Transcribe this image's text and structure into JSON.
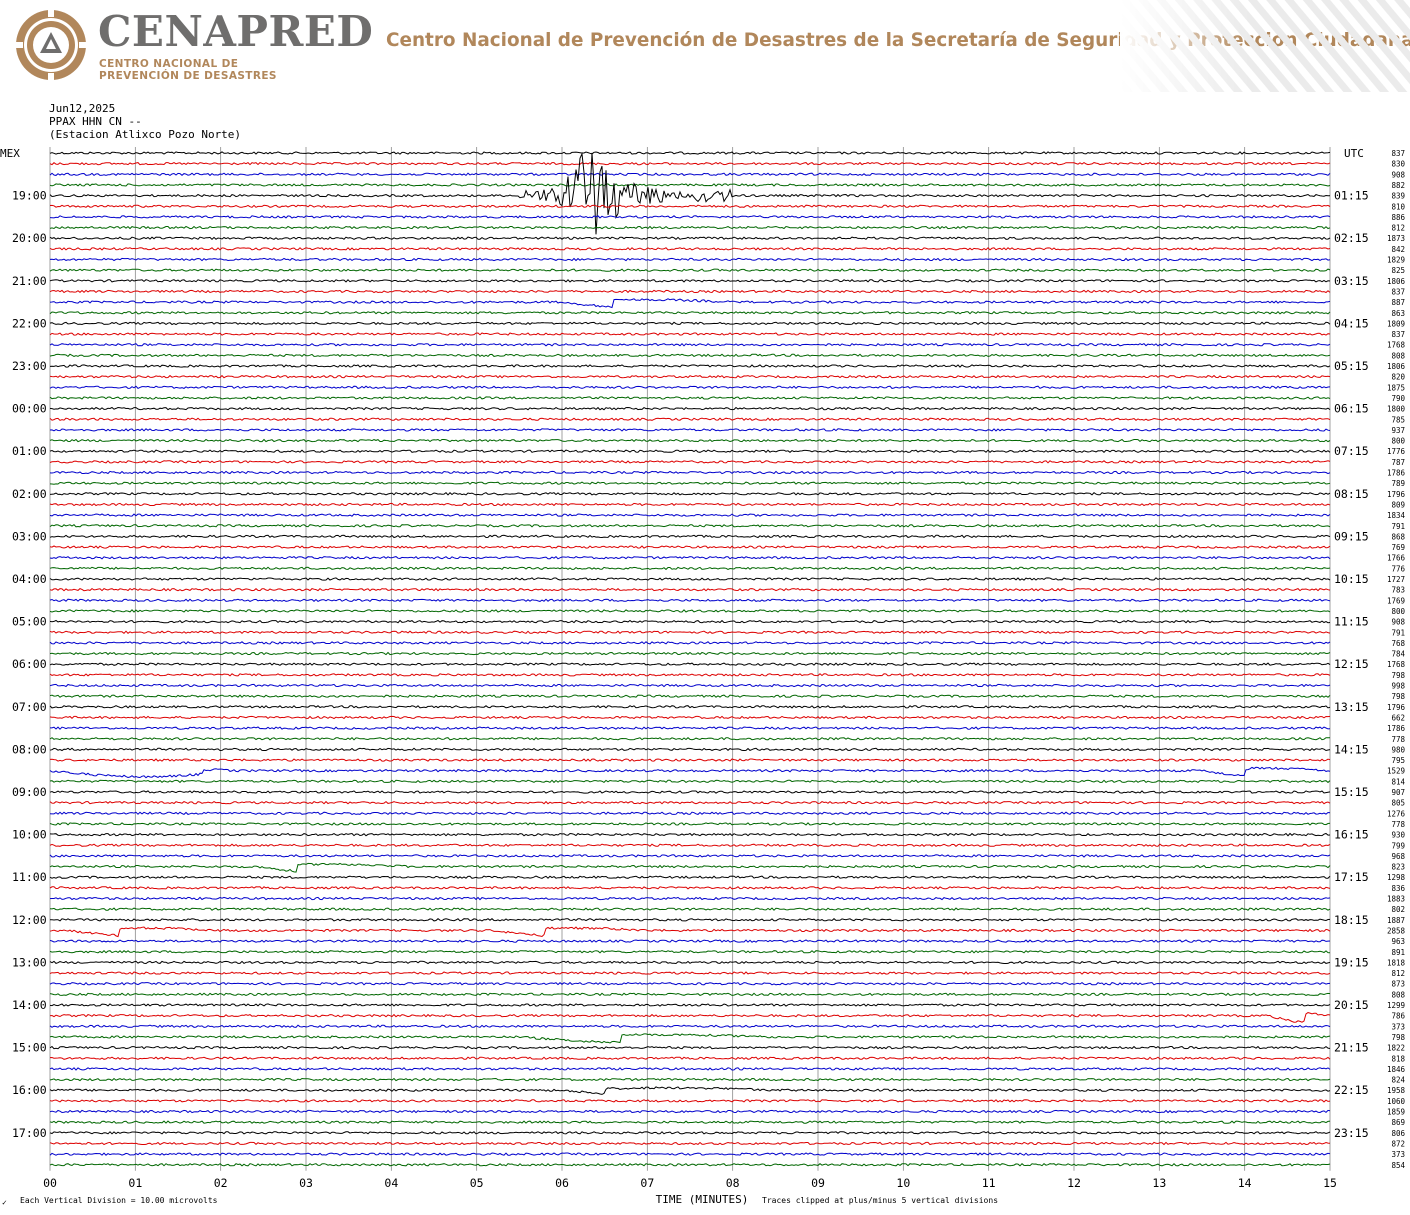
{
  "header": {
    "brand_name": "CENAPRED",
    "brand_sub_1": "CENTRO NACIONAL DE",
    "brand_sub_2": "PREVENCIÓN DE DESASTRES",
    "title": "Centro Nacional de Prevención de Desastres de la Secretaría de Seguridad y Protección Ciudadana",
    "brand_gray": "#6f6e6d",
    "brand_gold": "#b1875b"
  },
  "station": {
    "date": "Jun12,2025",
    "channel": "PPAX HHN CN --",
    "name": "(Estacion Atlixco Pozo Norte)"
  },
  "chart_data": {
    "type": "line",
    "left_zone_label": "MEX",
    "right_zone_label": "UTC",
    "xlabel": "TIME (MINUTES)",
    "x_ticks": [
      "00",
      "01",
      "02",
      "03",
      "04",
      "05",
      "06",
      "07",
      "08",
      "09",
      "10",
      "11",
      "12",
      "13",
      "14",
      "15"
    ],
    "xlim": [
      0,
      15
    ],
    "left_hour_labels": [
      "19:00",
      "20:00",
      "21:00",
      "22:00",
      "23:00",
      "00:00",
      "01:00",
      "02:00",
      "03:00",
      "04:00",
      "05:00",
      "06:00",
      "07:00",
      "08:00",
      "09:00",
      "10:00",
      "11:00",
      "12:00",
      "13:00",
      "14:00",
      "15:00",
      "16:00",
      "17:00"
    ],
    "right_hour_labels": [
      "01:15",
      "02:15",
      "03:15",
      "04:15",
      "05:15",
      "06:15",
      "07:15",
      "08:15",
      "09:15",
      "10:15",
      "11:15",
      "12:15",
      "13:15",
      "14:15",
      "15:15",
      "16:15",
      "17:15",
      "18:15",
      "19:15",
      "20:15",
      "21:15",
      "22:15",
      "23:15"
    ],
    "trace_colors": [
      "#000000",
      "#dd0000",
      "#0000cc",
      "#006600"
    ],
    "trace_count": 96,
    "footer_left_symbol": "✓",
    "footer_left": "Each Vertical Division =   10.00 microvolts",
    "footer_right": "Traces clipped at plus/minus 5 vertical divisions",
    "trace_mean_counts": [
      "837",
      "830",
      "908",
      "882",
      "839",
      "810",
      "886",
      "812",
      "1873",
      "842",
      "1829",
      "825",
      "1806",
      "837",
      "887",
      "863",
      "1809",
      "837",
      "1768",
      "808",
      "1806",
      "820",
      "1875",
      "790",
      "1800",
      "785",
      "937",
      "800",
      "1776",
      "787",
      "1786",
      "789",
      "1796",
      "809",
      "1834",
      "791",
      "868",
      "769",
      "1766",
      "776",
      "1727",
      "783",
      "1769",
      "800",
      "908",
      "791",
      "768",
      "784",
      "1768",
      "798",
      "998",
      "798",
      "1796",
      "662",
      "1786",
      "778",
      "980",
      "795",
      "1529",
      "814",
      "907",
      "805",
      "1276",
      "778",
      "930",
      "799",
      "968",
      "823",
      "1298",
      "836",
      "1883",
      "802",
      "1887",
      "2858",
      "963",
      "891",
      "1818",
      "812",
      "873",
      "808",
      "1299",
      "786",
      "373",
      "798",
      "1822",
      "818",
      "1846",
      "824",
      "1958",
      "1060",
      "1859",
      "869",
      "806",
      "872",
      "373",
      "854"
    ],
    "events": [
      {
        "trace": 4,
        "start_min": 5.5,
        "peak_min": 6.3,
        "end_min": 8.0,
        "kind": "earthquake",
        "clipped": true
      },
      {
        "trace": 14,
        "start_min": 6.0,
        "peak_min": 6.6,
        "end_min": 8.0,
        "kind": "long-period"
      },
      {
        "trace": 58,
        "start_min": 13.5,
        "peak_min": 14.0,
        "end_min": 15.0,
        "kind": "long-period"
      },
      {
        "trace": 58,
        "start_min": 0.0,
        "peak_min": 1.8,
        "end_min": 2.2,
        "kind": "long-period"
      },
      {
        "trace": 67,
        "start_min": 2.4,
        "peak_min": 2.9,
        "end_min": 4.2,
        "kind": "long-period"
      },
      {
        "trace": 73,
        "start_min": 0.2,
        "peak_min": 0.8,
        "end_min": 2.0,
        "kind": "long-period"
      },
      {
        "trace": 73,
        "start_min": 5.2,
        "peak_min": 5.8,
        "end_min": 7.0,
        "kind": "long-period"
      },
      {
        "trace": 81,
        "start_min": 14.3,
        "peak_min": 14.7,
        "end_min": 15.0,
        "kind": "long-period"
      },
      {
        "trace": 83,
        "start_min": 5.5,
        "peak_min": 6.7,
        "end_min": 8.5,
        "kind": "long-period"
      },
      {
        "trace": 88,
        "start_min": 6.0,
        "peak_min": 6.5,
        "end_min": 8.5,
        "kind": "long-period"
      }
    ]
  }
}
